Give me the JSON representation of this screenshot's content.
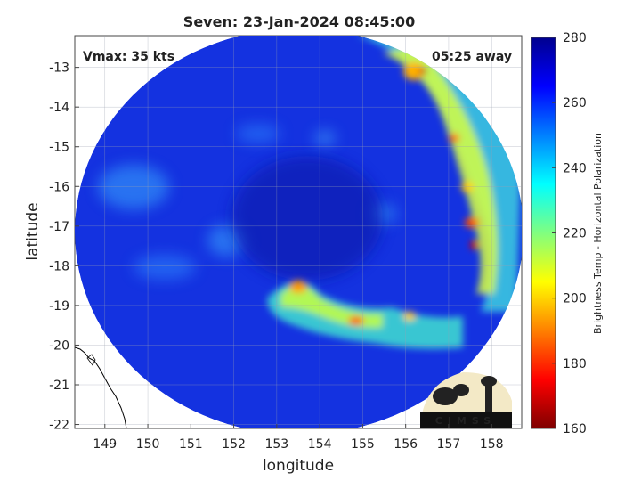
{
  "title": "Seven: 23-Jan-2024 08:45:00",
  "vmax_label": "Vmax: 35 kts",
  "time_away_label": "05:25 away",
  "xlabel": "longitude",
  "ylabel": "latitude",
  "logo_text": "CIMSS",
  "colorbar": {
    "label": "Brightness Temp - Horizontal Polarization",
    "range": [
      160,
      280
    ],
    "ticks": [
      "160",
      "180",
      "200",
      "220",
      "240",
      "260",
      "280"
    ],
    "stops": [
      "#7f0000",
      "#ff0000",
      "#ff8000",
      "#ffff00",
      "#80ff80",
      "#00ffff",
      "#0080ff",
      "#0000ff",
      "#00008f"
    ]
  },
  "map": {
    "lon_range": [
      148.3,
      158.7
    ],
    "lat_range": [
      -22.1,
      -12.2
    ],
    "x_ticks": [
      "149",
      "150",
      "151",
      "152",
      "153",
      "154",
      "155",
      "156",
      "157",
      "158"
    ],
    "y_ticks": [
      "-13",
      "-14",
      "-15",
      "-16",
      "-17",
      "-18",
      "-19",
      "-20",
      "-21",
      "-22"
    ],
    "background_color": "#1432e0",
    "eye_color": "#0a1fb0"
  }
}
